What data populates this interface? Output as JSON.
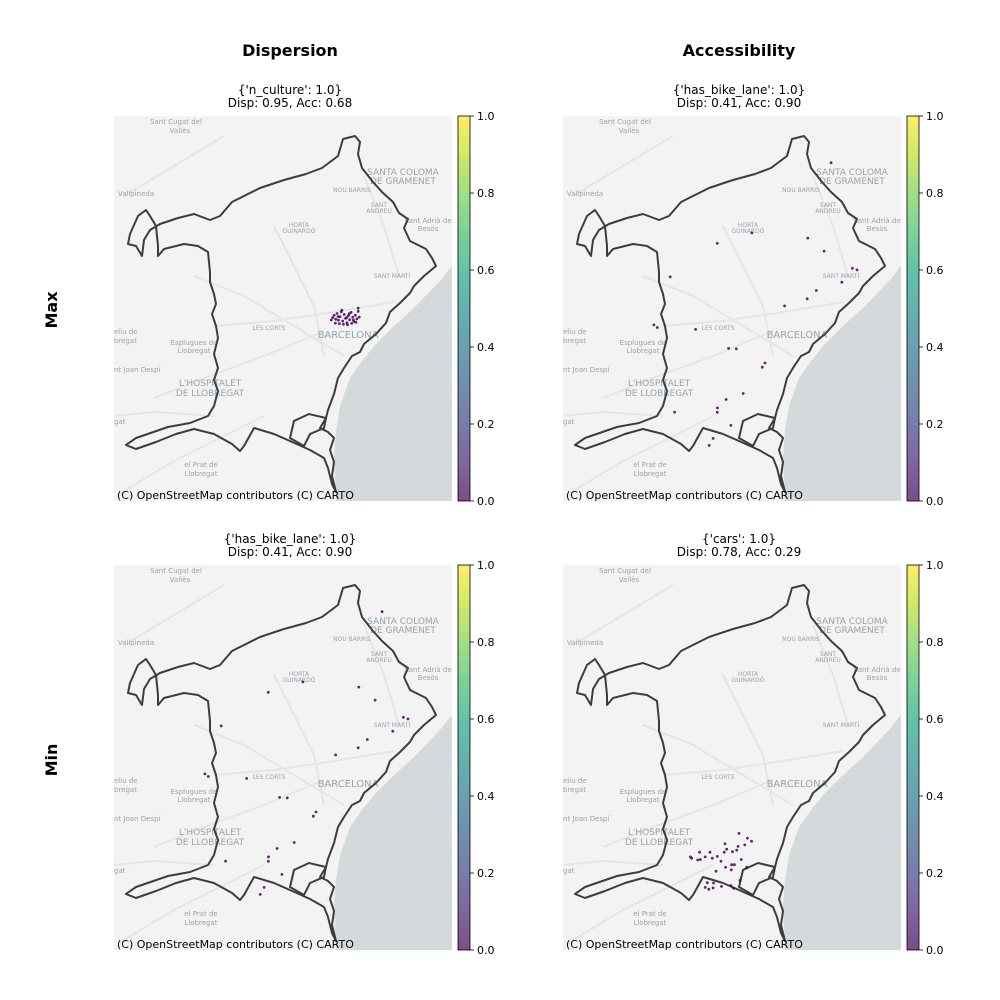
{
  "columns": {
    "dispersion": "Dispersion",
    "accessibility": "Accessibility"
  },
  "rows": {
    "max": "Max",
    "min": "Min"
  },
  "attribution": "(C) OpenStreetMap contributors (C) CARTO",
  "colorbar": {
    "ticks": [
      "0.0",
      "0.2",
      "0.4",
      "0.6",
      "0.8",
      "1.0"
    ],
    "colormap": "viridis",
    "alpha": 0.7
  },
  "basemap": {
    "land_color": "#f2f3f2",
    "water_color": "#d4dadc",
    "boundary_color": "#3d3d3d",
    "label_color": "#9aa3ad",
    "place_labels": [
      {
        "text": "Sant Cugat del",
        "size": 7
      },
      {
        "text": "Vallès",
        "size": 7
      },
      {
        "text": "SANTA COLOMA",
        "size": 9
      },
      {
        "text": "DE GRAMENET",
        "size": 9
      },
      {
        "text": "NOU BARRIS",
        "size": 6
      },
      {
        "text": "SANT",
        "size": 6
      },
      {
        "text": "ANDREU",
        "size": 6
      },
      {
        "text": "Sant Adrià de",
        "size": 7
      },
      {
        "text": "Besòs",
        "size": 7
      },
      {
        "text": "Vallpineda",
        "size": 7
      },
      {
        "text": "HORTA",
        "size": 6
      },
      {
        "text": "GUINARDÓ",
        "size": 6
      },
      {
        "text": "SANT MARTÍ",
        "size": 6
      },
      {
        "text": "LES CORTS",
        "size": 6
      },
      {
        "text": "BARCELONA",
        "size": 10
      },
      {
        "text": "eliu de",
        "size": 7
      },
      {
        "text": "bregat",
        "size": 7
      },
      {
        "text": "Esplugues de",
        "size": 7
      },
      {
        "text": "Llobregat",
        "size": 7
      },
      {
        "text": "nt Joan Despí",
        "size": 7
      },
      {
        "text": "L'HOSPITALET",
        "size": 9
      },
      {
        "text": "DE LLOBREGAT",
        "size": 9
      },
      {
        "text": "gat",
        "size": 7
      },
      {
        "text": "el Prat de",
        "size": 7
      },
      {
        "text": "Llobregat",
        "size": 7
      }
    ]
  },
  "panels": [
    {
      "row": "Max",
      "column": "Dispersion",
      "title_line1": "{'n_culture': 1.0}",
      "title_line2": "Disp: 0.95, Acc: 0.68",
      "point_value": 0.0,
      "points_lonlat": [
        [
          2.1662,
          41.3906
        ],
        [
          2.167,
          41.3915
        ],
        [
          2.1678,
          41.39
        ],
        [
          2.1685,
          41.3922
        ],
        [
          2.1692,
          41.3896
        ],
        [
          2.17,
          41.391
        ],
        [
          2.1707,
          41.3928
        ],
        [
          2.1714,
          41.3893
        ],
        [
          2.1722,
          41.3918
        ],
        [
          2.1729,
          41.3903
        ],
        [
          2.1736,
          41.3886
        ],
        [
          2.1744,
          41.3913
        ],
        [
          2.1751,
          41.3898
        ],
        [
          2.1758,
          41.3926
        ],
        [
          2.1766,
          41.3908
        ],
        [
          2.1773,
          41.3891
        ],
        [
          2.178,
          41.3915
        ],
        [
          2.1788,
          41.3901
        ],
        [
          2.1676,
          41.3885
        ],
        [
          2.1697,
          41.3883
        ],
        [
          2.1718,
          41.3881
        ],
        [
          2.1739,
          41.3879
        ],
        [
          2.1761,
          41.3884
        ],
        [
          2.1783,
          41.3888
        ],
        [
          2.1655,
          41.3897
        ],
        [
          2.171,
          41.3935
        ],
        [
          2.1748,
          41.3921
        ],
        [
          2.177,
          41.3897
        ],
        [
          2.169,
          41.391
        ],
        [
          2.1735,
          41.3906
        ],
        [
          2.1795,
          41.3942
        ],
        [
          2.18,
          41.3908
        ],
        [
          2.1795,
          41.393
        ]
      ]
    },
    {
      "row": "Max",
      "column": "Accessibility",
      "title_line1": "{'has_bike_lane': 1.0}",
      "title_line2": "Disp: 0.41, Acc: 0.90",
      "point_value": 0.0,
      "points_lonlat": [
        [
          2.1919,
          41.45
        ],
        [
          2.1507,
          41.4231
        ],
        [
          2.1327,
          41.4191
        ],
        [
          2.1798,
          41.4211
        ],
        [
          2.1883,
          41.4161
        ],
        [
          2.1082,
          41.4062
        ],
        [
          2.203,
          41.4095
        ],
        [
          2.2054,
          41.4089
        ],
        [
          2.1795,
          41.3978
        ],
        [
          2.1677,
          41.3951
        ],
        [
          2.0997,
          41.3878
        ],
        [
          2.1015,
          41.3868
        ],
        [
          2.1214,
          41.3861
        ],
        [
          2.1386,
          41.3788
        ],
        [
          2.1426,
          41.3786
        ],
        [
          2.1575,
          41.3732
        ],
        [
          2.1561,
          41.3716
        ],
        [
          2.1462,
          41.3615
        ],
        [
          2.1373,
          41.3592
        ],
        [
          2.1328,
          41.356
        ],
        [
          2.1327,
          41.3543
        ],
        [
          2.1105,
          41.3544
        ],
        [
          2.1398,
          41.3493
        ],
        [
          2.1305,
          41.3443
        ],
        [
          2.1285,
          41.3416
        ],
        [
          2.1842,
          41.401
        ],
        [
          2.1975,
          41.4042
        ]
      ]
    },
    {
      "row": "Min",
      "column": "Dispersion",
      "title_line1": "{'has_bike_lane': 1.0}",
      "title_line2": "Disp: 0.41, Acc: 0.90",
      "point_value": 0.0,
      "points_lonlat": [
        [
          2.1919,
          41.45
        ],
        [
          2.1507,
          41.4231
        ],
        [
          2.1327,
          41.4191
        ],
        [
          2.1798,
          41.4211
        ],
        [
          2.1883,
          41.4161
        ],
        [
          2.1082,
          41.4062
        ],
        [
          2.203,
          41.4095
        ],
        [
          2.2054,
          41.4089
        ],
        [
          2.1795,
          41.3978
        ],
        [
          2.1677,
          41.3951
        ],
        [
          2.0997,
          41.3878
        ],
        [
          2.1015,
          41.3868
        ],
        [
          2.1214,
          41.3861
        ],
        [
          2.1386,
          41.3788
        ],
        [
          2.1426,
          41.3786
        ],
        [
          2.1575,
          41.3732
        ],
        [
          2.1561,
          41.3716
        ],
        [
          2.1462,
          41.3615
        ],
        [
          2.1373,
          41.3592
        ],
        [
          2.1328,
          41.356
        ],
        [
          2.1327,
          41.3543
        ],
        [
          2.1105,
          41.3544
        ],
        [
          2.1398,
          41.3493
        ],
        [
          2.1305,
          41.3443
        ],
        [
          2.1285,
          41.3416
        ],
        [
          2.1842,
          41.401
        ],
        [
          2.1975,
          41.4042
        ]
      ]
    },
    {
      "row": "Min",
      "column": "Accessibility",
      "title_line1": "{'cars': 1.0}",
      "title_line2": "Disp: 0.78, Acc: 0.29",
      "point_value": 0.0,
      "points_lonlat": [
        [
          2.144,
          41.365
        ],
        [
          2.1484,
          41.3632
        ],
        [
          2.1505,
          41.362
        ],
        [
          2.1435,
          41.36
        ],
        [
          2.147,
          41.3606
        ],
        [
          2.1235,
          41.3578
        ],
        [
          2.1289,
          41.3578
        ],
        [
          2.1327,
          41.3562
        ],
        [
          2.1363,
          41.3578
        ],
        [
          2.1376,
          41.359
        ],
        [
          2.1406,
          41.358
        ],
        [
          2.1428,
          41.3586
        ],
        [
          2.1193,
          41.3555
        ],
        [
          2.1225,
          41.3548
        ],
        [
          2.1239,
          41.355
        ],
        [
          2.1264,
          41.356
        ],
        [
          2.1301,
          41.3555
        ],
        [
          2.1346,
          41.3543
        ],
        [
          2.137,
          41.352
        ],
        [
          2.1416,
          41.353
        ],
        [
          2.1452,
          41.355
        ],
        [
          2.132,
          41.3505
        ],
        [
          2.14,
          41.351
        ],
        [
          2.1275,
          41.3461
        ],
        [
          2.1307,
          41.346
        ],
        [
          2.1349,
          41.3447
        ],
        [
          2.1264,
          41.3443
        ],
        [
          2.1283,
          41.3436
        ],
        [
          2.1305,
          41.3441
        ],
        [
          2.1398,
          41.345
        ],
        [
          2.1412,
          41.344
        ],
        [
          2.1445,
          41.347
        ],
        [
          2.1187,
          41.356
        ],
        [
          2.148,
          41.352
        ],
        [
          2.1367,
          41.361
        ],
        [
          2.1402,
          41.353
        ]
      ]
    }
  ]
}
